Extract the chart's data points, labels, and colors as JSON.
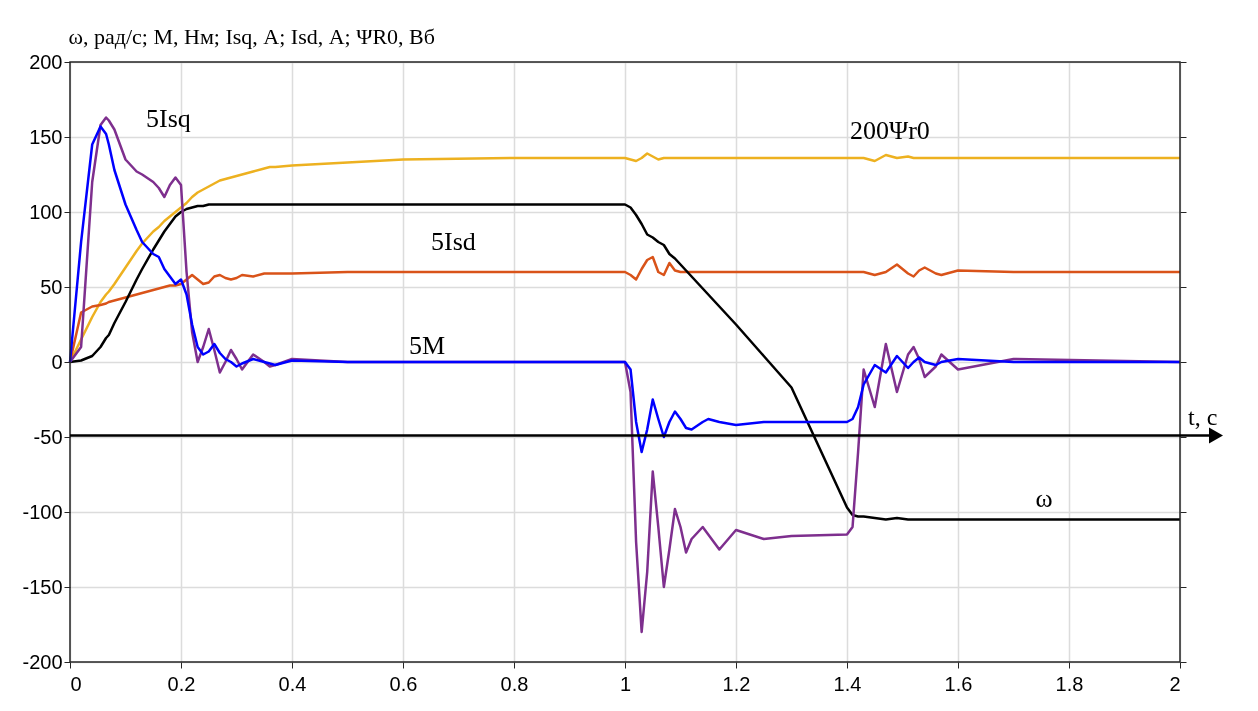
{
  "chart_data": {
    "type": "line",
    "ylabel": "ω, рад/с;  M, Нм; Isq, А;  Isd, А;  ΨR0, Вб",
    "xlim": [
      0,
      2
    ],
    "xticks": [
      0,
      0.2,
      0.4,
      0.6,
      0.8,
      1,
      1.2,
      1.4,
      1.6,
      1.8,
      2
    ],
    "ylim": [
      -200,
      200
    ],
    "yticks": [
      -200,
      -150,
      -100,
      -50,
      0,
      50,
      100,
      150,
      200
    ],
    "grid": true,
    "line_style": "solid",
    "marker": "none",
    "x": [
      0,
      0.02,
      0.04,
      0.055,
      0.065,
      0.07,
      0.08,
      0.1,
      0.12,
      0.13,
      0.15,
      0.16,
      0.17,
      0.18,
      0.19,
      0.2,
      0.21,
      0.22,
      0.23,
      0.24,
      0.25,
      0.26,
      0.27,
      0.28,
      0.29,
      0.3,
      0.31,
      0.33,
      0.35,
      0.36,
      0.37,
      0.4,
      0.5,
      0.6,
      0.8,
      1.0,
      1.01,
      1.02,
      1.03,
      1.04,
      1.05,
      1.06,
      1.07,
      1.08,
      1.09,
      1.1,
      1.11,
      1.12,
      1.14,
      1.15,
      1.17,
      1.2,
      1.25,
      1.3,
      1.4,
      1.41,
      1.42,
      1.43,
      1.45,
      1.47,
      1.49,
      1.51,
      1.52,
      1.53,
      1.54,
      1.56,
      1.57,
      1.6,
      1.7,
      2
    ],
    "series": [
      {
        "color": "#edb120",
        "values": [
          0,
          15,
          30,
          40,
          45,
          47,
          52,
          63,
          74,
          79,
          87,
          90,
          94,
          97,
          100,
          103,
          106,
          110,
          113,
          115,
          117,
          119,
          121,
          122,
          123,
          124,
          125,
          127,
          129,
          130,
          130,
          131,
          133,
          135,
          136,
          136,
          135,
          134,
          136,
          139,
          137,
          135,
          136,
          136,
          136,
          136,
          136,
          136,
          136,
          136,
          136,
          136,
          136,
          136,
          136,
          136,
          136,
          136,
          134,
          138,
          136,
          137,
          136,
          136,
          136,
          136,
          136,
          136,
          136,
          136
        ]
      },
      {
        "color": "#d95319",
        "values": [
          0,
          33,
          37,
          38,
          39,
          40,
          41,
          43,
          45,
          46,
          48,
          49,
          50,
          51,
          51,
          52,
          55,
          58,
          55,
          52,
          53,
          57,
          58,
          56,
          55,
          56,
          58,
          57,
          59,
          59,
          59,
          59,
          60,
          60,
          60,
          60,
          58,
          55,
          62,
          68,
          70,
          60,
          58,
          66,
          61,
          60,
          60,
          60,
          60,
          60,
          60,
          60,
          60,
          60,
          60,
          60,
          60,
          60,
          58,
          60,
          65,
          59,
          57,
          61,
          63,
          59,
          58,
          61,
          60,
          60
        ]
      },
      {
        "color": "#000000",
        "values": [
          0,
          1,
          4,
          10,
          16,
          18,
          26,
          40,
          55,
          62,
          75,
          81,
          87,
          92,
          97,
          100,
          102,
          103,
          104,
          104,
          105,
          105,
          105,
          105,
          105,
          105,
          105,
          105,
          105,
          105,
          105,
          105,
          105,
          105,
          105,
          105,
          103,
          98,
          92,
          85,
          83,
          80,
          78,
          72,
          69,
          65,
          61,
          57,
          49,
          45,
          37,
          25,
          4,
          -17,
          -97,
          -102,
          -103,
          -103,
          -104,
          -105,
          -104,
          -105,
          -105,
          -105,
          -105,
          -105,
          -105,
          -105,
          -105,
          -105
        ]
      },
      {
        "color": "#7e2f8e",
        "values": [
          0,
          10,
          120,
          158,
          163,
          161,
          155,
          135,
          127,
          125,
          120,
          116,
          110,
          118,
          123,
          118,
          60,
          20,
          0,
          10,
          22,
          8,
          -7,
          0,
          8,
          2,
          -5,
          5,
          0,
          -3,
          -2,
          2,
          0,
          0,
          0,
          0,
          -20,
          -120,
          -180,
          -140,
          -73,
          -110,
          -150,
          -125,
          -98,
          -110,
          -127,
          -118,
          -110,
          -115,
          -125,
          -112,
          -118,
          -116,
          -115,
          -110,
          -60,
          -5,
          -30,
          12,
          -20,
          5,
          10,
          2,
          -10,
          -3,
          5,
          -5,
          2,
          0
        ]
      },
      {
        "color": "#0000ff",
        "values": [
          0,
          80,
          145,
          157,
          152,
          145,
          128,
          105,
          88,
          80,
          72,
          70,
          62,
          57,
          52,
          55,
          45,
          25,
          10,
          5,
          7,
          12,
          6,
          2,
          0,
          -3,
          -1,
          2,
          0,
          -1,
          -2,
          1,
          0,
          0,
          0,
          0,
          -5,
          -40,
          -60,
          -45,
          -25,
          -38,
          -50,
          -40,
          -33,
          -38,
          -44,
          -45,
          -40,
          -38,
          -40,
          -42,
          -40,
          -40,
          -40,
          -38,
          -30,
          -15,
          -2,
          -7,
          4,
          -4,
          0,
          3,
          0,
          -2,
          0,
          2,
          0,
          0
        ]
      }
    ],
    "ref_lines": [
      {
        "axis": "y",
        "value": -49,
        "label": "t, c",
        "color": "#000000"
      }
    ],
    "annotations": [
      {
        "text": "5Isq",
        "x": 0.065,
        "y": 163
      },
      {
        "text": "200Ψr0",
        "x": 1.4,
        "y": 136
      },
      {
        "text": "5Isd",
        "x": 0.6,
        "y": 60
      },
      {
        "text": "5M",
        "x": 0.6,
        "y": 0
      },
      {
        "text": "ω",
        "x": 1.7,
        "y": -105
      }
    ]
  }
}
